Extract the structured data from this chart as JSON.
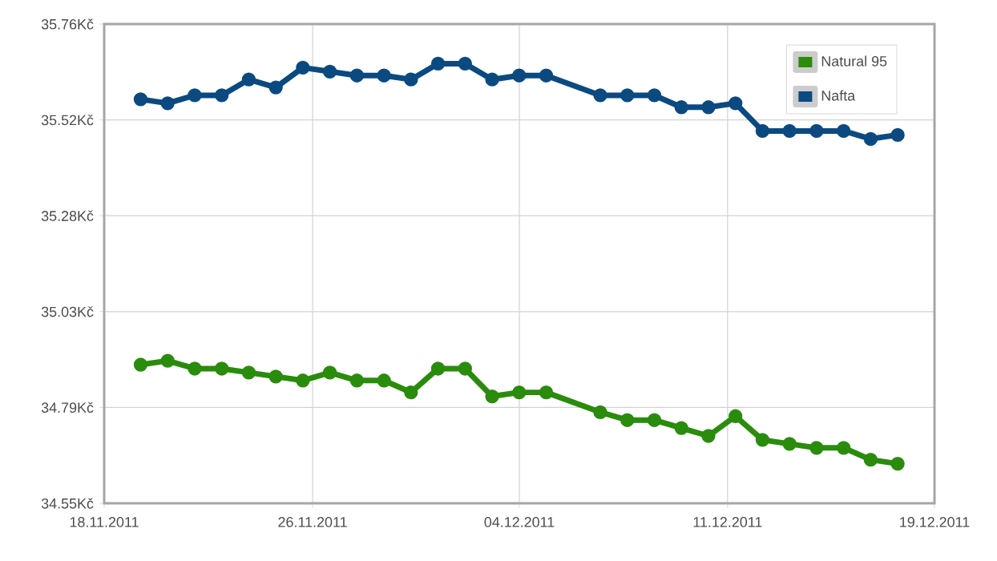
{
  "chart_data": {
    "type": "line",
    "x": [
      "2011-11-19",
      "2011-11-20",
      "2011-11-21",
      "2011-11-22",
      "2011-11-23",
      "2011-11-24",
      "2011-11-25",
      "2011-11-26",
      "2011-11-27",
      "2011-11-28",
      "2011-11-29",
      "2011-11-30",
      "2011-12-01",
      "2011-12-02",
      "2011-12-03",
      "2011-12-04",
      "2011-12-06",
      "2011-12-07",
      "2011-12-08",
      "2011-12-09",
      "2011-12-10",
      "2011-12-11",
      "2011-12-12",
      "2011-12-13",
      "2011-12-14",
      "2011-12-15",
      "2011-12-16",
      "2011-12-17"
    ],
    "series": [
      {
        "name": "Natural 95",
        "color": "#2a8c0c",
        "values": [
          34.9,
          34.91,
          34.89,
          34.89,
          34.88,
          34.87,
          34.86,
          34.88,
          34.86,
          34.86,
          34.83,
          34.89,
          34.89,
          34.82,
          34.83,
          34.83,
          34.78,
          34.76,
          34.76,
          34.74,
          34.72,
          34.77,
          34.71,
          34.7,
          34.69,
          34.69,
          34.66,
          34.65
        ]
      },
      {
        "name": "Nafta",
        "color": "#0b4a80",
        "values": [
          35.57,
          35.56,
          35.58,
          35.58,
          35.62,
          35.6,
          35.65,
          35.64,
          35.63,
          35.63,
          35.62,
          35.66,
          35.66,
          35.62,
          35.63,
          35.63,
          35.58,
          35.58,
          35.58,
          35.55,
          35.55,
          35.56,
          35.49,
          35.49,
          35.49,
          35.49,
          35.47,
          35.48
        ]
      }
    ],
    "xlim": [
      "2011-11-17T15:40",
      "2011-12-18T08:40"
    ],
    "xticks": [
      {
        "value": "2011-11-17T15:40",
        "label": "18.11.2011"
      },
      {
        "value": "2011-11-25T08:40",
        "label": "26.11.2011"
      },
      {
        "value": "2011-12-03T00:10",
        "label": "04.12.2011"
      },
      {
        "value": "2011-12-10T17:00",
        "label": "11.12.2011"
      },
      {
        "value": "2011-12-18T08:40",
        "label": "19.12.2011"
      }
    ],
    "ylim": [
      34.55,
      35.76
    ],
    "yticks": [
      {
        "value": 34.55,
        "label": "34.55Kč"
      },
      {
        "value": 34.792,
        "label": "34.79Kč"
      },
      {
        "value": 35.034,
        "label": "35.03Kč"
      },
      {
        "value": 35.276,
        "label": "35.28Kč"
      },
      {
        "value": 35.518,
        "label": "35.52Kč"
      },
      {
        "value": 35.76,
        "label": "35.76Kč"
      }
    ],
    "grid": true,
    "legend": "top right",
    "marker": "circle",
    "line_style": "solid"
  }
}
